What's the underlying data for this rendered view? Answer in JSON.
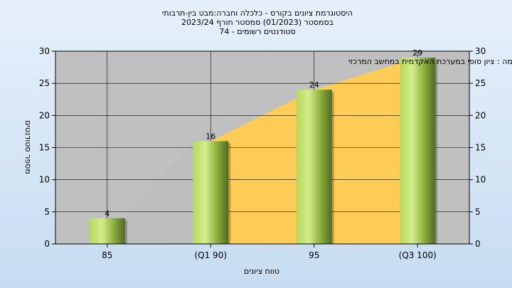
{
  "chart_data": {
    "type": "bar",
    "title_lines": [
      "היסטוגרמת ציונים בקורס - כלכלה וחברה:מבט בין-תרבותי",
      "בסמסטר  (01/2023)  סמסטר חורף  2023/24",
      "סטודנטים רשומים - 74"
    ],
    "annotation": "במשימה : ציון סופי במערכת האקדמית במחשב המרכזי",
    "xlabel": "טווח ציונים",
    "ylabel": "מספר סטודנטים",
    "categories": [
      "85",
      "(Q1 90)",
      "95",
      "(Q3 100)"
    ],
    "values": [
      4,
      16,
      24,
      29
    ],
    "ylim": [
      0,
      30
    ],
    "yticks": [
      0,
      5,
      10,
      15,
      20,
      25,
      30
    ],
    "grid": true,
    "colors": {
      "plot_bg": "#c0c0c0",
      "area_gray": "#bdbdbd",
      "area_yellow": "#ffcc55",
      "bar_light": "#c9e67a",
      "bar_dark": "#4f6b22"
    }
  }
}
